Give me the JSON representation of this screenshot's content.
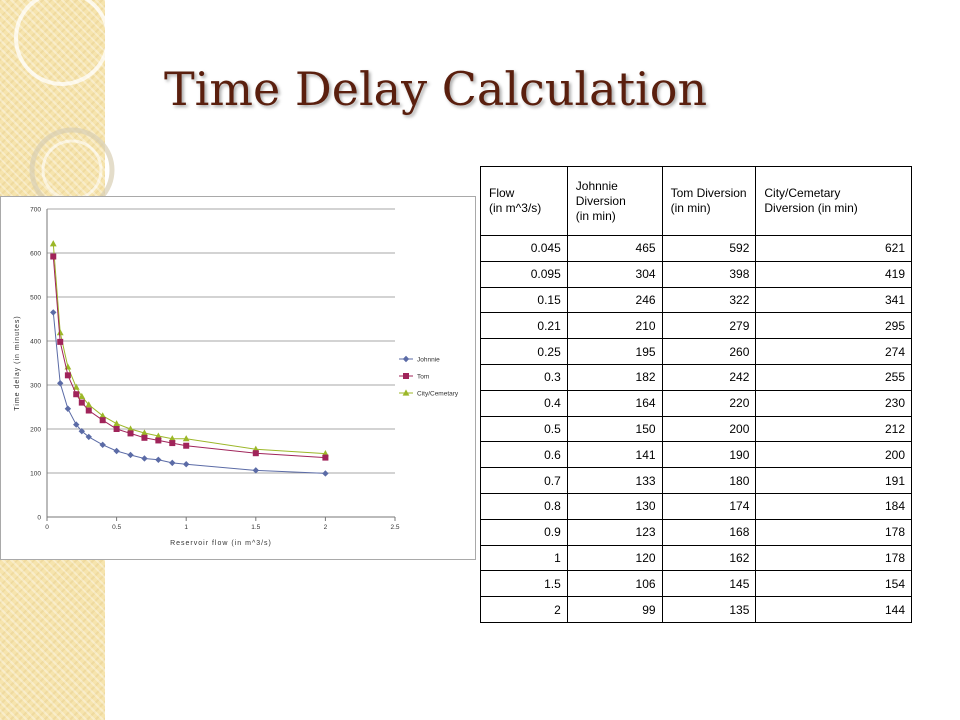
{
  "slide": {
    "title": "Time Delay Calculation"
  },
  "colors": {
    "johnnie": "#5b6ba6",
    "tom": "#a0245a",
    "city": "#9cb728",
    "title": "#5a1f0e"
  },
  "chart_data": {
    "type": "scatter",
    "mode": "lines+markers",
    "xlabel": "Reservoir flow (in m^3/s)",
    "ylabel": "Time delay (in minutes)",
    "xlim": [
      0,
      2.5
    ],
    "ylim": [
      0,
      700
    ],
    "xticks": [
      0,
      0.5,
      1,
      1.5,
      2,
      2.5
    ],
    "xtick_labels": [
      "0",
      "0.5",
      "1",
      "1.5",
      "2",
      "2.5"
    ],
    "yticks": [
      0,
      100,
      200,
      300,
      400,
      500,
      600,
      700
    ],
    "ytick_labels": [
      "0",
      "100",
      "200",
      "300",
      "400",
      "500",
      "600",
      "700"
    ],
    "grid": "horizontal",
    "legend_position": "right",
    "x": [
      0.045,
      0.095,
      0.15,
      0.21,
      0.25,
      0.3,
      0.4,
      0.5,
      0.6,
      0.7,
      0.8,
      0.9,
      1,
      1.5,
      2
    ],
    "series": [
      {
        "name": "Johnnie",
        "marker": "diamond",
        "color": "#5b6ba6",
        "values": [
          465,
          304,
          246,
          210,
          195,
          182,
          164,
          150,
          141,
          133,
          130,
          123,
          120,
          106,
          99
        ]
      },
      {
        "name": "Tom",
        "marker": "square",
        "color": "#a0245a",
        "values": [
          592,
          398,
          322,
          279,
          260,
          242,
          220,
          200,
          190,
          180,
          174,
          168,
          162,
          145,
          135
        ]
      },
      {
        "name": "City/Cemetary",
        "marker": "triangle",
        "color": "#9cb728",
        "values": [
          621,
          419,
          341,
          295,
          274,
          255,
          230,
          212,
          200,
          191,
          184,
          178,
          178,
          154,
          144
        ]
      }
    ]
  },
  "table": {
    "headers": [
      "Flow\n(in m^3/s)",
      "Johnnie\nDiversion\n (in min)",
      "Tom Diversion\n(in min)",
      "City/Cemetary\nDiversion (in min)"
    ],
    "rows": [
      [
        "0.045",
        "465",
        "592",
        "621"
      ],
      [
        "0.095",
        "304",
        "398",
        "419"
      ],
      [
        "0.15",
        "246",
        "322",
        "341"
      ],
      [
        "0.21",
        "210",
        "279",
        "295"
      ],
      [
        "0.25",
        "195",
        "260",
        "274"
      ],
      [
        "0.3",
        "182",
        "242",
        "255"
      ],
      [
        "0.4",
        "164",
        "220",
        "230"
      ],
      [
        "0.5",
        "150",
        "200",
        "212"
      ],
      [
        "0.6",
        "141",
        "190",
        "200"
      ],
      [
        "0.7",
        "133",
        "180",
        "191"
      ],
      [
        "0.8",
        "130",
        "174",
        "184"
      ],
      [
        "0.9",
        "123",
        "168",
        "178"
      ],
      [
        "1",
        "120",
        "162",
        "178"
      ],
      [
        "1.5",
        "106",
        "145",
        "154"
      ],
      [
        "2",
        "99",
        "135",
        "144"
      ]
    ]
  }
}
